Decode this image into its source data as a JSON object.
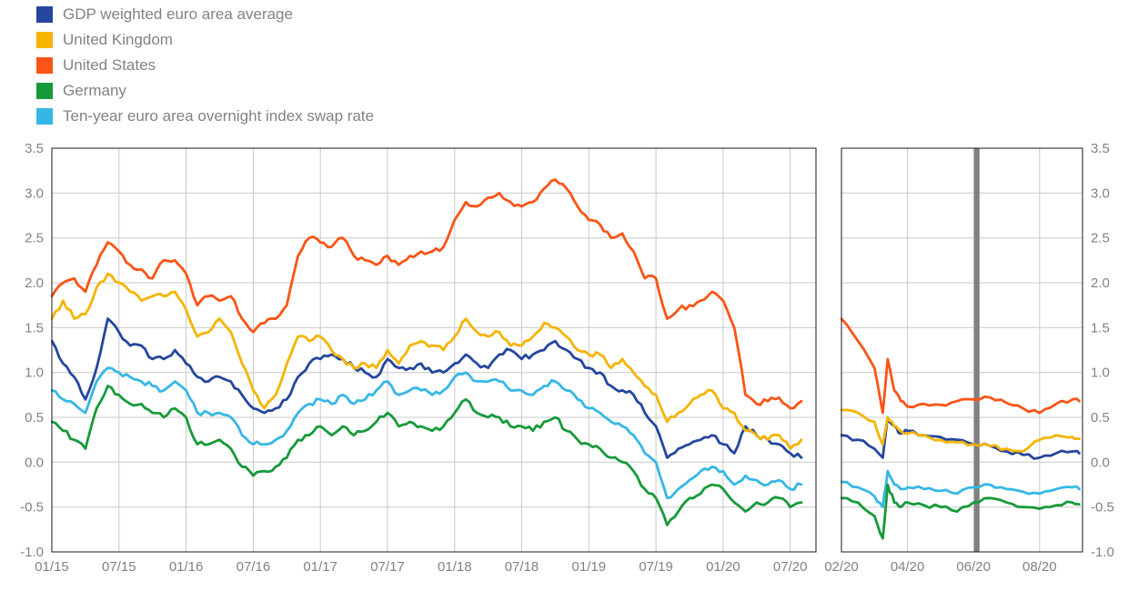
{
  "chart_data": {
    "type": "line",
    "title": "",
    "ylabel": "",
    "ylim": [
      -1.0,
      3.5
    ],
    "y_ticks": [
      3.5,
      3.0,
      2.5,
      2.0,
      1.5,
      1.0,
      0.5,
      0.0,
      -0.5,
      -1.0
    ],
    "y_tick_labels": [
      "3.5",
      "3.0",
      "2.5",
      "2.0",
      "1.5",
      "1.0",
      "0.5",
      "0.0",
      "-0.5",
      "-1.0"
    ],
    "x_encoding": "months since Jan 2015 (0 = 01/15)",
    "grid": true,
    "legend_position": "top-left",
    "legend": [
      {
        "label": "GDP weighted euro area average",
        "color": "#24469e"
      },
      {
        "label": "United Kingdom",
        "color": "#f5b400"
      },
      {
        "label": "United States",
        "color": "#fc5416"
      },
      {
        "label": "Germany",
        "color": "#169a39"
      },
      {
        "label": "Ten-year euro area overnight index swap rate",
        "color": "#35b7e5"
      }
    ],
    "panels": [
      {
        "name": "main",
        "x_tick_positions": [
          0,
          6,
          12,
          18,
          24,
          30,
          36,
          42,
          48,
          54,
          60,
          66
        ],
        "x_tick_labels": [
          "01/15",
          "07/15",
          "01/16",
          "07/16",
          "01/17",
          "07/17",
          "01/18",
          "07/18",
          "01/19",
          "07/19",
          "01/20",
          "07/20"
        ],
        "x": [
          0,
          1,
          2,
          3,
          4,
          5,
          6,
          7,
          8,
          9,
          10,
          11,
          12,
          13,
          14,
          15,
          16,
          17,
          18,
          19,
          20,
          21,
          22,
          23,
          24,
          25,
          26,
          27,
          28,
          29,
          30,
          31,
          32,
          33,
          34,
          35,
          36,
          37,
          38,
          39,
          40,
          41,
          42,
          43,
          44,
          45,
          46,
          47,
          48,
          49,
          50,
          51,
          52,
          53,
          54,
          55,
          56,
          57,
          58,
          59,
          60,
          61,
          62,
          63,
          64,
          65,
          66,
          67
        ],
        "series": [
          {
            "name": "GDP weighted euro area average",
            "values": [
              1.35,
              1.1,
              0.95,
              0.7,
              1.05,
              1.6,
              1.45,
              1.3,
              1.3,
              1.15,
              1.15,
              1.25,
              1.1,
              0.95,
              0.9,
              0.95,
              0.9,
              0.75,
              0.6,
              0.55,
              0.6,
              0.7,
              0.95,
              1.1,
              1.15,
              1.2,
              1.15,
              1.05,
              1.0,
              0.95,
              1.15,
              1.05,
              1.05,
              1.1,
              1.0,
              1.0,
              1.1,
              1.2,
              1.1,
              1.05,
              1.2,
              1.25,
              1.15,
              1.2,
              1.25,
              1.35,
              1.25,
              1.15,
              1.05,
              1.0,
              0.85,
              0.8,
              0.75,
              0.55,
              0.4,
              0.05,
              0.15,
              0.2,
              0.25,
              0.3,
              0.2,
              0.1,
              0.4,
              0.3,
              0.25,
              0.2,
              0.1,
              0.05
            ]
          },
          {
            "name": "United Kingdom",
            "values": [
              1.6,
              1.8,
              1.6,
              1.65,
              1.95,
              2.1,
              2.0,
              1.9,
              1.8,
              1.85,
              1.85,
              1.9,
              1.7,
              1.4,
              1.45,
              1.6,
              1.45,
              1.1,
              0.8,
              0.6,
              0.75,
              1.1,
              1.4,
              1.35,
              1.4,
              1.25,
              1.15,
              1.05,
              1.1,
              1.05,
              1.25,
              1.1,
              1.3,
              1.35,
              1.3,
              1.25,
              1.4,
              1.6,
              1.45,
              1.4,
              1.45,
              1.3,
              1.3,
              1.4,
              1.55,
              1.5,
              1.4,
              1.25,
              1.2,
              1.2,
              1.05,
              1.15,
              1.0,
              0.85,
              0.75,
              0.45,
              0.55,
              0.65,
              0.75,
              0.8,
              0.6,
              0.55,
              0.35,
              0.3,
              0.25,
              0.3,
              0.15,
              0.25
            ]
          },
          {
            "name": "United States",
            "values": [
              1.85,
              2.0,
              2.05,
              1.9,
              2.2,
              2.45,
              2.35,
              2.2,
              2.15,
              2.05,
              2.25,
              2.25,
              2.1,
              1.75,
              1.85,
              1.8,
              1.85,
              1.6,
              1.45,
              1.55,
              1.6,
              1.75,
              2.3,
              2.5,
              2.45,
              2.4,
              2.5,
              2.3,
              2.25,
              2.2,
              2.3,
              2.2,
              2.3,
              2.35,
              2.35,
              2.4,
              2.7,
              2.9,
              2.85,
              2.95,
              3.0,
              2.9,
              2.85,
              2.9,
              3.05,
              3.15,
              3.05,
              2.85,
              2.7,
              2.65,
              2.5,
              2.55,
              2.35,
              2.05,
              2.05,
              1.6,
              1.7,
              1.75,
              1.8,
              1.9,
              1.8,
              1.5,
              0.75,
              0.65,
              0.68,
              0.72,
              0.6,
              0.68
            ]
          },
          {
            "name": "Germany",
            "values": [
              0.45,
              0.35,
              0.25,
              0.15,
              0.6,
              0.85,
              0.75,
              0.65,
              0.65,
              0.55,
              0.5,
              0.6,
              0.5,
              0.2,
              0.2,
              0.25,
              0.15,
              -0.05,
              -0.15,
              -0.1,
              -0.05,
              0.05,
              0.25,
              0.3,
              0.4,
              0.3,
              0.4,
              0.3,
              0.35,
              0.45,
              0.55,
              0.4,
              0.45,
              0.4,
              0.35,
              0.4,
              0.55,
              0.7,
              0.55,
              0.5,
              0.5,
              0.4,
              0.4,
              0.35,
              0.45,
              0.5,
              0.35,
              0.25,
              0.2,
              0.15,
              0.05,
              0.0,
              -0.1,
              -0.3,
              -0.4,
              -0.7,
              -0.55,
              -0.4,
              -0.35,
              -0.25,
              -0.3,
              -0.45,
              -0.55,
              -0.45,
              -0.45,
              -0.4,
              -0.5,
              -0.45
            ]
          },
          {
            "name": "Ten-year euro area overnight index swap rate",
            "values": [
              0.8,
              0.7,
              0.65,
              0.55,
              0.9,
              1.05,
              1.0,
              0.95,
              0.9,
              0.85,
              0.8,
              0.9,
              0.8,
              0.55,
              0.55,
              0.55,
              0.5,
              0.3,
              0.2,
              0.2,
              0.25,
              0.35,
              0.55,
              0.65,
              0.7,
              0.65,
              0.75,
              0.65,
              0.7,
              0.8,
              0.9,
              0.75,
              0.8,
              0.8,
              0.75,
              0.8,
              0.95,
              1.0,
              0.9,
              0.9,
              0.9,
              0.8,
              0.8,
              0.75,
              0.85,
              0.9,
              0.8,
              0.7,
              0.6,
              0.55,
              0.45,
              0.4,
              0.3,
              0.1,
              0.0,
              -0.4,
              -0.3,
              -0.2,
              -0.1,
              -0.05,
              -0.1,
              -0.25,
              -0.15,
              -0.2,
              -0.25,
              -0.2,
              -0.3,
              -0.25
            ]
          }
        ]
      },
      {
        "name": "zoom",
        "x_tick_positions": [
          61,
          63,
          65,
          67
        ],
        "x_tick_labels": [
          "02/20",
          "04/20",
          "06/20",
          "08/20"
        ],
        "marker_x": 65.1,
        "x": [
          61.0,
          61.5,
          62.0,
          62.25,
          62.4,
          62.6,
          62.8,
          63.0,
          63.5,
          64.0,
          64.5,
          65.0,
          65.5,
          66.0,
          66.5,
          67.0,
          67.5,
          68.0,
          68.2
        ],
        "series": [
          {
            "name": "GDP weighted euro area average",
            "values": [
              0.3,
              0.25,
              0.15,
              0.05,
              0.5,
              0.4,
              0.32,
              0.35,
              0.3,
              0.28,
              0.25,
              0.2,
              0.18,
              0.12,
              0.08,
              0.05,
              0.1,
              0.12,
              0.1
            ]
          },
          {
            "name": "United Kingdom",
            "values": [
              0.58,
              0.55,
              0.45,
              0.2,
              0.5,
              0.4,
              0.35,
              0.32,
              0.3,
              0.25,
              0.22,
              0.2,
              0.18,
              0.15,
              0.12,
              0.25,
              0.3,
              0.28,
              0.26
            ]
          },
          {
            "name": "United States",
            "values": [
              1.6,
              1.35,
              1.05,
              0.55,
              1.15,
              0.8,
              0.68,
              0.62,
              0.65,
              0.64,
              0.68,
              0.7,
              0.72,
              0.66,
              0.6,
              0.55,
              0.65,
              0.7,
              0.68
            ]
          },
          {
            "name": "Germany",
            "values": [
              -0.4,
              -0.45,
              -0.6,
              -0.85,
              -0.25,
              -0.45,
              -0.5,
              -0.45,
              -0.48,
              -0.5,
              -0.55,
              -0.45,
              -0.4,
              -0.45,
              -0.5,
              -0.52,
              -0.48,
              -0.45,
              -0.47
            ]
          },
          {
            "name": "Ten-year euro area overnight index swap rate",
            "values": [
              -0.22,
              -0.28,
              -0.38,
              -0.5,
              -0.1,
              -0.25,
              -0.3,
              -0.28,
              -0.3,
              -0.32,
              -0.35,
              -0.28,
              -0.25,
              -0.3,
              -0.33,
              -0.35,
              -0.3,
              -0.28,
              -0.3
            ]
          }
        ]
      }
    ],
    "colors": {
      "gridline": "#c9c9c9",
      "frame": "#1a1a1a",
      "axis_text": "#828282",
      "event_marker": "#7f7f7f"
    }
  }
}
